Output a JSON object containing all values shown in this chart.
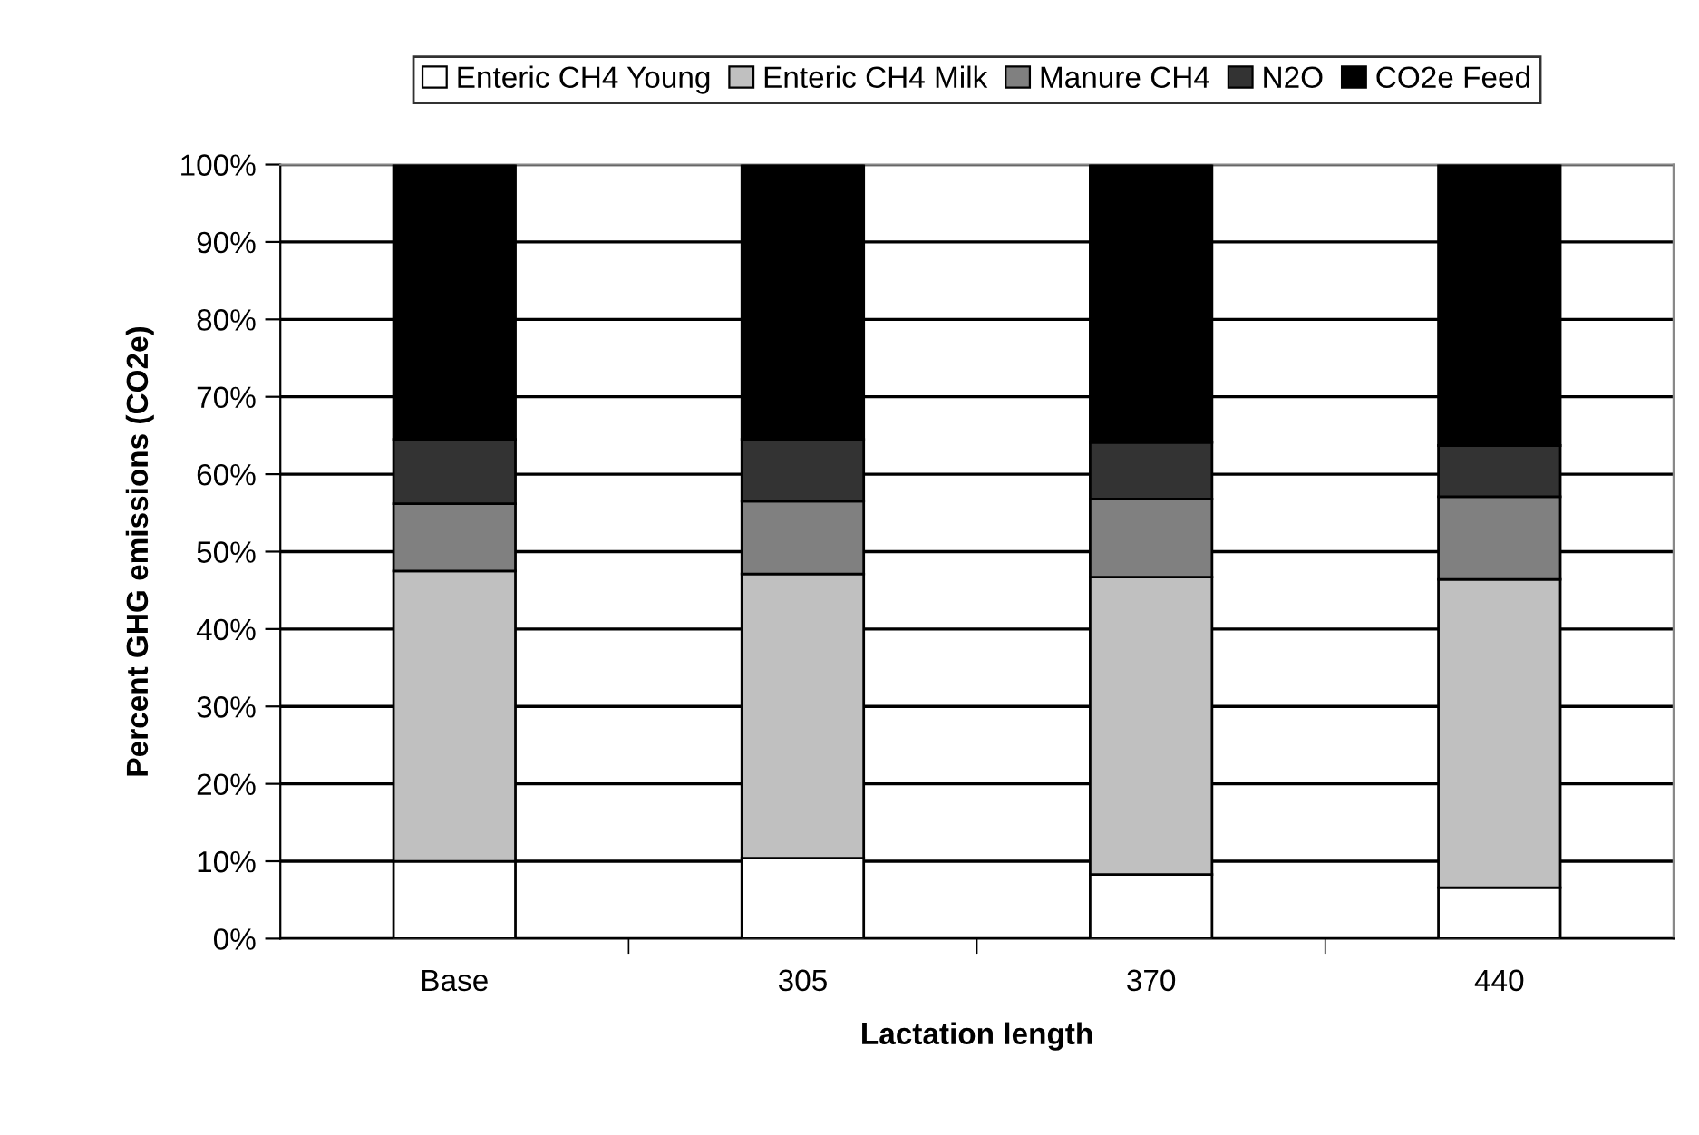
{
  "chart_data": {
    "type": "bar",
    "stacked": true,
    "xlabel": "Lactation length",
    "ylabel": "Percent GHG emissions (CO2e)",
    "categories": [
      "Base",
      "305",
      "370",
      "440"
    ],
    "series": [
      {
        "name": "Enteric CH4 Young",
        "color": "#ffffff",
        "values": [
          10.0,
          10.4,
          8.3,
          6.6
        ]
      },
      {
        "name": "Enteric CH4 Milk",
        "color": "#c0c0c0",
        "values": [
          37.5,
          36.7,
          38.4,
          39.8
        ]
      },
      {
        "name": "Manure CH4",
        "color": "#808080",
        "values": [
          8.7,
          9.4,
          10.1,
          10.7
        ]
      },
      {
        "name": "N2O",
        "color": "#333333",
        "values": [
          8.3,
          8.0,
          7.3,
          6.6
        ]
      },
      {
        "name": "CO2e Feed",
        "color": "#000000",
        "values": [
          35.5,
          35.5,
          35.9,
          36.3
        ]
      }
    ],
    "ylim": [
      0,
      100
    ],
    "yticks": [
      {
        "value": 0,
        "label": "0%"
      },
      {
        "value": 10,
        "label": "10%"
      },
      {
        "value": 20,
        "label": "20%"
      },
      {
        "value": 30,
        "label": "30%"
      },
      {
        "value": 40,
        "label": "40%"
      },
      {
        "value": 50,
        "label": "50%"
      },
      {
        "value": 60,
        "label": "60%"
      },
      {
        "value": 70,
        "label": "70%"
      },
      {
        "value": 80,
        "label": "80%"
      },
      {
        "value": 90,
        "label": "90%"
      },
      {
        "value": 100,
        "label": "100%"
      }
    ],
    "grid": "y",
    "legend": "top"
  }
}
